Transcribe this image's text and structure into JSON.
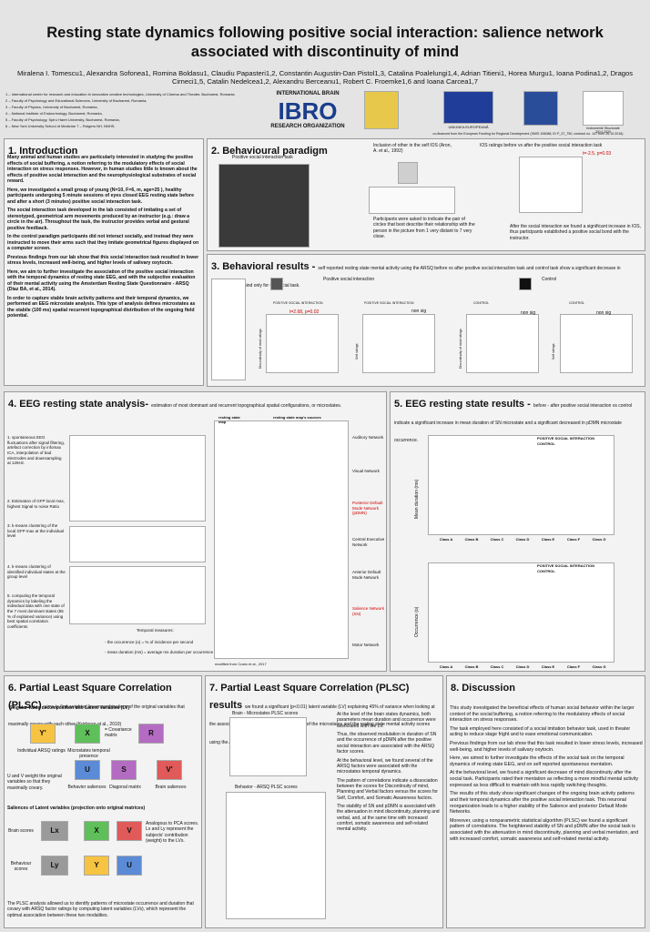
{
  "header": {
    "title": "Resting state dynamics following positive social interaction: salience network associated with discontinuity of mind",
    "authors": "Miralena I. Tomescu1, Alexandra Sofonea1, Romina Boldasu1, Claudiu Papasteri1,2, Constantin Augustin-Dan Pistol1,3, Catalina Poalelungi1,4, Adrian Titieni1, Horea Murgu1, Ioana Podina1,2, Dragos Cirneci1,5, Catalin Nedelcea1,2, Alexandru Berceanu1, Robert C. Froemke1,6 and Ioana Carcea1,7",
    "affiliations": [
      "1 – International center for research and education in innovative creative technologies, University of Cinema and Theater, Bucharest, Romania",
      "2 – Faculty of Psychology and Educational Sciences, University of Bucharest, Romania,",
      "3 – Faculty of Physics, University of Bucharest, Romania,",
      "4 – National Institute of Endocrinology, Bucharest, Romania,",
      "5 – Faculty of Psychology, Spiru Haret University, Bucharest, Romania,",
      "6 – New York University School of Medicine 7 – Rutgers NH, NNHS."
    ],
    "logos": [
      "INTERNATIONAL BRAIN",
      "IBRO",
      "RESEARCH ORGANIZATION",
      "UNIUNEA EUROPEANĂ",
      "Instrumente Structurale 2014-2020"
    ],
    "funding": "co-financed from the European Funding for Regional Development (SMIS 106088, ID P_37_750, contract no. 147 from 26.10.2016)"
  },
  "sections": [
    {
      "heading": "1. Introduction",
      "paragraphs": [
        "Many animal and human studies are particularly interested in studying the positive effects of social buffering, a notion referring to the modulatory effects of social interaction on stress responses. However, in human studies little is known about the effects of positive social interaction and the neurophysiological substrates of social reward.",
        "Here, we investigated a small group of young (N=10, F=6, m, age=25 ), healthy participants undergoing 5 minute sessions of eyes closed EEG resting state before and after a short (3 minutes) positive social interaction task.",
        "The social interaction task developed in the lab consisted of imitating a set of stereotyped, geometrical arm movements produced by an instructor (e.g.: draw a circle in the air). Throughout the task, the instructor provides verbal and gestural positive feedback.",
        "In the control paradigm participants did not interact socially, and instead they were instructed to move their arms such that they imitate geometrical figures displayed on a computer screen.",
        "Previous findings from our lab show that this social interaction task resulted in lower stress levels, increased well-being, and higher levels of salivary oxytocin.",
        "Here, we aim to further investigate the association of the positive social interaction with the temporal dynamics of resting state EEG, and with the subjective evaluation of their mental activity using the Amsterdam Resting State Questionnaire - ARSQ (Diaz BA, et al., 2014).",
        "In order to capture stable brain activity patterns and their temporal dynamics, we performed an EEG microstate analysis. This type of analysis defines microstates as the stabile (100 ms) spatial recurrent topographical distribution of the ongoing field potential."
      ]
    },
    {
      "heading": "2. Behavioural paradigm",
      "labels": [
        "Positive social interaction task",
        "Inclusion of other in the self IOS (Aron, A. et al., 1992)",
        "Participants were asked to indicate the pair of circles that best describe their relationship with the person in the picture from 1 very distant to 7 very close.",
        "IOS ratings before vs after the positive social interaction task",
        "t=-2.5, p=0.03",
        "After the social interaction we found a significant increase in IOS, thus participants established a positive social bond with the instructor."
      ]
    },
    {
      "heading": "3. Behavioral results - ",
      "subtitle": "self reported resting state mental activity using the ARSQ before vs after positive social interaction task and control task show a significant decrease in discontinuity of mind only for the social task.",
      "labels": [
        "Positive social interaction",
        "Control",
        "POSITIVE SOCIAL INTERACTION",
        "POSITIVE SOCIAL INTERACTION",
        "CONTROL",
        "CONTROL",
        "t=2.68, p=0.02",
        "non sig",
        "non sig",
        "non sig",
        "Discontinuity of mind ratings",
        "Self ratings",
        "Discontinuity of mind ratings",
        "Self ratings"
      ]
    },
    {
      "heading": "4. EEG resting state analysis- ",
      "subtitle": "estimation of most dominant and recurrent topographical spatial configurations, or microstates.",
      "labels": [
        "resting state map",
        "resting state map's sources",
        "Auditory Network",
        "Visual Network",
        "Posterior Default Mode Network (pDMN)",
        "Central Executive Network",
        "Anterior Default Mode Network",
        "Salience Network (SN)",
        "Motor Network",
        "1. spontaneous EEG fluctuations after signal filtering, artefact correction by infomax ICA, interpolation of bad electrodes and downsampling at 125Hz.",
        "2. Estimation of GFP local max, highest Signal to noise Ratio",
        "3. k-means clustering of the local GFP max at the individual level",
        "4. k-means clustering of identified individual states at the group level",
        "5. computing the temporal dynamics by labeling the individual data with one state of the 7 most dominant states (85 % of explained variance) using best spatial correlation coefficients",
        "Temporal measures:",
        "- the occurrence (o) = % of incidence per second",
        "- mean duration (ms) = average ms duration per occurrence",
        "modified from Custo et al., 2017"
      ]
    },
    {
      "heading": "5. EEG resting state results - ",
      "subtitle": "before - after positive social interaction vs control indicate a significant increase in mean duration of SN microstate and a significant decreased in pDMN microstate occurrence.",
      "labels": [
        "Mean duration (ms)",
        "Occurrence (o)",
        "POSITIVE SOCIAL INTERACTION",
        "CONTROL",
        "POSITIVE SOCIAL INTERACTION",
        "CONTROL"
      ],
      "classes": [
        "Class A",
        "Class B",
        "Class C",
        "Class D",
        "Class E",
        "Class F",
        "Class G"
      ]
    },
    {
      "heading": "6. Partial Least Square Correlation (PLSC) ",
      "subtitle": "aims to find weighted linear combinations of the original variables that maximally covary with each other (Krishnan et al., 2010)",
      "labels": [
        "Singular value decomposition into Latent Variables (LV)",
        "Y'",
        "X",
        "= Covariance matrix",
        "R",
        "Individual ARSQ ratings",
        "Microstates temporal presence",
        "U",
        "S",
        "V'",
        "Behavior saliences",
        "Diagonal matrix",
        "Brain saliences",
        "U and V weight the original variables so that they maximally covary.",
        "Saliences of Latent variables (projection onto original matrices)",
        "Brain scores",
        "Lx",
        "X",
        "V",
        "Analogous to PCA scores. Lx and Ly represent the subjects' contribution (weight) to the LVs.",
        "Behaviour scores",
        "Ly",
        "Y",
        "U",
        "The PLSC analysis allowed us to identify patterns of microstate occurrence and duration that covary with ARSQ factor ratings by computing latent variables (LVs), which represent the optimal association between these two modalities."
      ]
    },
    {
      "heading": "7. Partial Least Square Correlation (PLSC) results ",
      "subtitle": "we found a significant (p<0.01) latent variable (LV) explaining 45% of variance when looking at the association between the temporal dynamics of the microstates and the resting state mental activity scores using the ARSQ.",
      "labels": [
        "Brain - Microstates PLSC scores",
        "Behavior - ARSQ PLSC scores"
      ],
      "paragraphs": [
        "At the level of the brain states dynamics, both parameters mean duration and occurrence were associated with the LV.",
        "Thus, the observed modulation in duration of SN and the occurrence of pDMN after the positive social interaction are associated with the ARSQ factor scores.",
        "At the behavioral level, we found several of the ARSQ factors were associated with the microstates temporal dynamics.",
        "The pattern of correlations indicate a dissociation between the scores for Discontinuity of mind, Planning and Verbal factors versus the scores for Self, Comfort, and Somatic Awareness factors.",
        "The stability of SN and pDMN is associated with the attenuation in mind discontinuity, planning and verbal, and, at the same time with increased comfort, somatic awareness and self-related mental activity."
      ]
    },
    {
      "heading": "8. Discussion",
      "paragraphs": [
        "This study investigated the beneficial effects of human social behavior within the larger context of the social buffering, a notion referring to the modulatory effects of social interaction on stress responses.",
        "The task employed here consisted of a social imitation behavior task, used in theater acting to reduce stage fright and to ease emotional communication.",
        "Previous findings from our lab show that this task resulted in lower stress levels, increased well-being, and higher levels of salivary oxytocin.",
        "Here, we aimed to further investigate the effects of the social task on the temporal dynamics of resting state EEG, and on self reported spontaneous mentation.",
        "At the behavioral level, we found a significant decrease of mind discontinuity after the social task. Participants rated their mentation as reflecting a more mindful mental activity expressed as less difficult to maintain with less rapidly switching thoughts.",
        "The results of this study show significant changes of the ongoing brain activity patterns and their temporal dynamics after the positive social interaction task. This neuronal reorganization leads to a higher stability of the Salience and posterior Default Mode Networks.",
        "Moreover, using a nonparametric statistical algorithm (PLSC) we found a significant pattern of correlations. The heightened stability of SN and pDMN after the social task is associated with the attenuation in mind discontinuity, planning and verbal mentation, and with increased comfort, somatic awareness and self-related mental activity."
      ]
    }
  ]
}
